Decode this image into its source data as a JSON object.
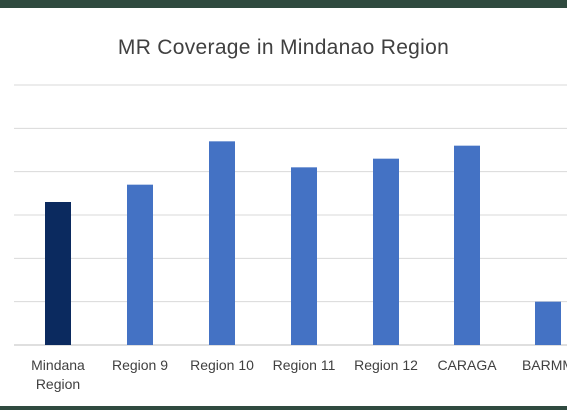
{
  "chart_data": {
    "type": "bar",
    "title": "MR Coverage in Mindanao Region",
    "xlabel": "",
    "ylabel": "",
    "categories": [
      "Mindana\nRegion",
      "Region 9",
      "Region 10",
      "Region 11",
      "Region 12",
      "CARAGA",
      "BARMM"
    ],
    "values": [
      83,
      87,
      97,
      91,
      93,
      96,
      60
    ],
    "ylim": [
      50,
      110
    ],
    "grid": true,
    "colors": {
      "highlight": "#0b2a5f",
      "default": "#4472c4",
      "grid": "#d9d9d9",
      "axis": "#bfbfbf"
    },
    "highlight_index": 0
  }
}
